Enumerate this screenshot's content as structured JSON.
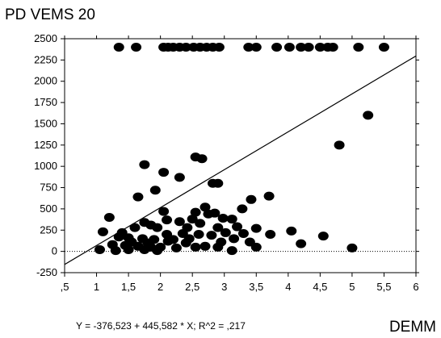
{
  "chart_data": {
    "type": "scatter",
    "ylabel": "PD VEMS 20",
    "xlabel": "DEMM",
    "equation": "Y = -376,523 + 445,582 * X; R^2 = ,217",
    "xlim": [
      0.5,
      6
    ],
    "ylim": [
      -250,
      2500
    ],
    "x_ticks": [
      0.5,
      1,
      1.5,
      2,
      2.5,
      3,
      3.5,
      4,
      4.5,
      5,
      5.5,
      6
    ],
    "x_tick_labels": [
      ",5",
      "1",
      "1,5",
      "2",
      "2,5",
      "3",
      "3,5",
      "4",
      "4,5",
      "5",
      "5,5",
      "6"
    ],
    "y_ticks": [
      -250,
      0,
      250,
      500,
      750,
      1000,
      1250,
      1500,
      1750,
      2000,
      2250,
      2500
    ],
    "y_tick_labels": [
      "-250",
      "0",
      "250",
      "500",
      "750",
      "1000",
      "1250",
      "1500",
      "1750",
      "2000",
      "2250",
      "2500"
    ],
    "regression": {
      "intercept": -376.523,
      "slope": 445.582
    },
    "reference_line_y": 0,
    "points": [
      [
        1.35,
        2400
      ],
      [
        1.62,
        2400
      ],
      [
        2.05,
        2400
      ],
      [
        2.12,
        2400
      ],
      [
        2.2,
        2400
      ],
      [
        2.3,
        2400
      ],
      [
        2.4,
        2400
      ],
      [
        2.52,
        2400
      ],
      [
        2.62,
        2400
      ],
      [
        2.72,
        2400
      ],
      [
        2.82,
        2400
      ],
      [
        2.92,
        2400
      ],
      [
        3.38,
        2400
      ],
      [
        3.5,
        2400
      ],
      [
        3.82,
        2400
      ],
      [
        4.02,
        2400
      ],
      [
        4.2,
        2400
      ],
      [
        4.32,
        2400
      ],
      [
        4.5,
        2400
      ],
      [
        4.62,
        2400
      ],
      [
        4.7,
        2400
      ],
      [
        5.1,
        2400
      ],
      [
        5.5,
        2400
      ],
      [
        5.25,
        1600
      ],
      [
        4.8,
        1250
      ],
      [
        2.55,
        1110
      ],
      [
        2.65,
        1090
      ],
      [
        1.75,
        1020
      ],
      [
        2.05,
        930
      ],
      [
        2.3,
        870
      ],
      [
        2.82,
        800
      ],
      [
        2.9,
        800
      ],
      [
        1.92,
        720
      ],
      [
        3.7,
        650
      ],
      [
        1.65,
        640
      ],
      [
        3.42,
        610
      ],
      [
        2.7,
        520
      ],
      [
        3.28,
        500
      ],
      [
        2.55,
        460
      ],
      [
        2.05,
        470
      ],
      [
        2.75,
        440
      ],
      [
        2.85,
        450
      ],
      [
        1.2,
        400
      ],
      [
        2.98,
        390
      ],
      [
        3.12,
        380
      ],
      [
        2.5,
        380
      ],
      [
        2.1,
        370
      ],
      [
        2.3,
        350
      ],
      [
        1.75,
        340
      ],
      [
        2.62,
        330
      ],
      [
        1.85,
        310
      ],
      [
        3.2,
        290
      ],
      [
        1.6,
        280
      ],
      [
        1.95,
        280
      ],
      [
        2.42,
        280
      ],
      [
        2.9,
        280
      ],
      [
        3.5,
        270
      ],
      [
        4.05,
        240
      ],
      [
        1.1,
        230
      ],
      [
        1.4,
        220
      ],
      [
        2.1,
        200
      ],
      [
        2.35,
        210
      ],
      [
        2.6,
        200
      ],
      [
        2.8,
        190
      ],
      [
        3.02,
        220
      ],
      [
        3.3,
        210
      ],
      [
        3.72,
        200
      ],
      [
        4.55,
        180
      ],
      [
        1.35,
        170
      ],
      [
        1.5,
        160
      ],
      [
        1.72,
        150
      ],
      [
        1.9,
        140
      ],
      [
        2.2,
        140
      ],
      [
        2.45,
        150
      ],
      [
        3.15,
        150
      ],
      [
        2.12,
        120
      ],
      [
        1.55,
        110
      ],
      [
        1.8,
        100
      ],
      [
        2.4,
        100
      ],
      [
        2.95,
        110
      ],
      [
        3.4,
        110
      ],
      [
        4.2,
        90
      ],
      [
        1.25,
        80
      ],
      [
        1.45,
        70
      ],
      [
        1.65,
        60
      ],
      [
        1.85,
        50
      ],
      [
        2.0,
        50
      ],
      [
        2.25,
        40
      ],
      [
        2.55,
        50
      ],
      [
        2.9,
        50
      ],
      [
        3.12,
        10
      ],
      [
        3.5,
        50
      ],
      [
        1.5,
        20
      ],
      [
        1.75,
        20
      ],
      [
        1.3,
        10
      ],
      [
        1.05,
        20
      ],
      [
        5.0,
        40
      ],
      [
        2.7,
        60
      ],
      [
        1.95,
        10
      ]
    ]
  }
}
